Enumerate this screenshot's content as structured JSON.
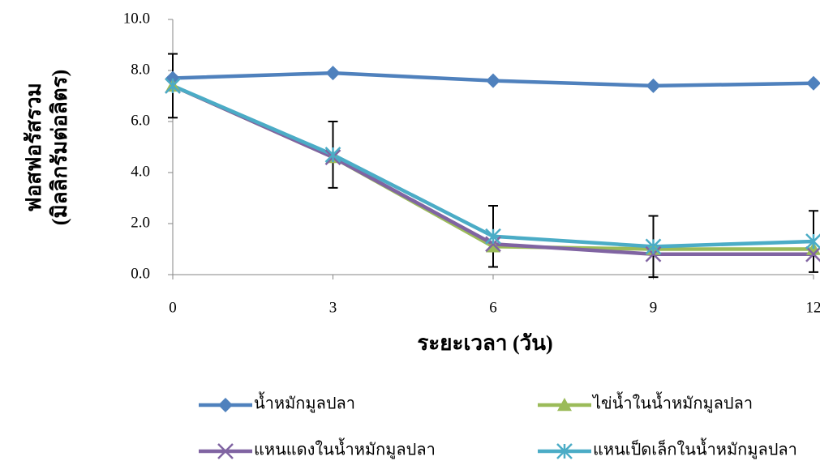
{
  "chart_data": {
    "type": "line",
    "y_title_lines": [
      "ฟอสฟอรัสรวม",
      "(มิลลิกรัมต่อลิตร)"
    ],
    "x_title": "ระยะเวลา (วัน)",
    "x": [
      0,
      3,
      6,
      9,
      12
    ],
    "xlim": [
      0,
      12
    ],
    "xticks": [
      0,
      3,
      6,
      9,
      12
    ],
    "ylim": [
      0,
      10
    ],
    "yticks": [
      {
        "value": 0,
        "label": "0.0"
      },
      {
        "value": 2,
        "label": "2.0"
      },
      {
        "value": 4,
        "label": "4.0"
      },
      {
        "value": 6,
        "label": "6.0"
      },
      {
        "value": 8,
        "label": "8.0"
      },
      {
        "value": 10,
        "label": "10.0"
      }
    ],
    "grid": false,
    "series": [
      {
        "name": "น้ำหมักมูลปลา",
        "color": "#4f81bd",
        "marker": "diamond",
        "values": [
          7.7,
          7.9,
          7.6,
          7.4,
          7.5
        ]
      },
      {
        "name": "ไข่น้ำในน้ำหมักมูลปลา",
        "color": "#9bbb59",
        "marker": "triangle",
        "values": [
          7.4,
          4.6,
          1.1,
          1.0,
          1.0
        ]
      },
      {
        "name": "แหนแดงในน้ำหมักมูลปลา",
        "color": "#8064a2",
        "marker": "x",
        "values": [
          7.4,
          4.6,
          1.2,
          0.8,
          0.8
        ]
      },
      {
        "name": "แหนเป็ดเล็กในน้ำหมักมูลปลา",
        "color": "#4bacc6",
        "marker": "star",
        "values": [
          7.4,
          4.7,
          1.5,
          1.1,
          1.3
        ],
        "errors": [
          1.25,
          1.3,
          1.2,
          1.2,
          1.2
        ]
      }
    ]
  }
}
